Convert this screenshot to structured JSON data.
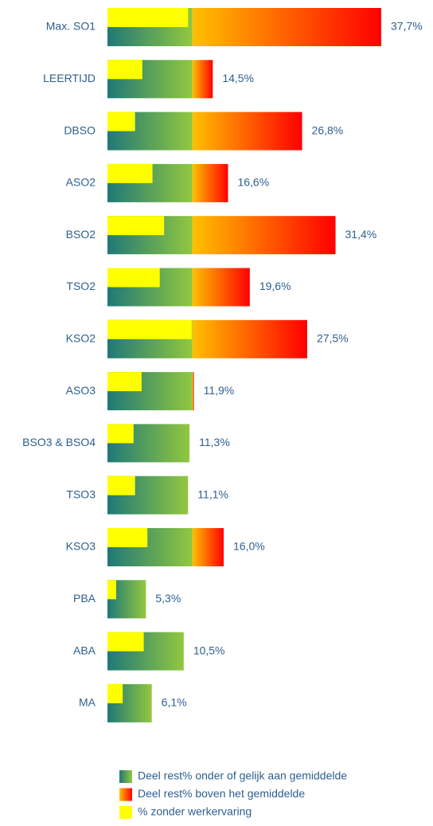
{
  "chart_data": {
    "type": "bar",
    "orientation": "horizontal",
    "categories": [
      "Max. SO1",
      "LEERTIJD",
      "DBSO",
      "ASO2",
      "BSO2",
      "TSO2",
      "KSO2",
      "ASO3",
      "BSO3 & BSO4",
      "TSO3",
      "KSO3",
      "PBA",
      "ABA",
      "MA"
    ],
    "values": [
      37.7,
      14.5,
      26.8,
      16.6,
      31.4,
      19.6,
      27.5,
      11.9,
      11.3,
      11.1,
      16.0,
      5.3,
      10.5,
      6.1
    ],
    "value_labels": [
      "37,7%",
      "14,5%",
      "26,8%",
      "16,6%",
      "31,4%",
      "19,6%",
      "27,5%",
      "11,9%",
      "11,3%",
      "11,1%",
      "16,0%",
      "5,3%",
      "10,5%",
      "6,1%"
    ],
    "series": [
      {
        "name": "Deel rest% onder of gelijk aan gemiddelde",
        "color": [
          "#1f7878",
          "#92c83e"
        ],
        "values": [
          11.7,
          11.7,
          11.7,
          11.7,
          11.7,
          11.7,
          11.7,
          11.7,
          11.3,
          11.1,
          11.7,
          5.3,
          10.5,
          6.1
        ]
      },
      {
        "name": "Deel rest% boven het gemiddelde",
        "color": [
          "#ffc000",
          "#ff0000"
        ],
        "values": [
          26.0,
          2.8,
          15.1,
          4.9,
          19.7,
          7.9,
          15.8,
          0.2,
          0,
          0,
          4.3,
          0,
          0,
          0
        ]
      },
      {
        "name": "% zonder werkervaring",
        "color": [
          "#ffff00",
          "#ffff00"
        ],
        "overlay": true,
        "values": [
          11.1,
          4.8,
          3.8,
          6.2,
          7.8,
          7.2,
          11.6,
          4.7,
          3.6,
          3.8,
          5.5,
          1.2,
          5.0,
          2.1
        ]
      }
    ]
  }
}
